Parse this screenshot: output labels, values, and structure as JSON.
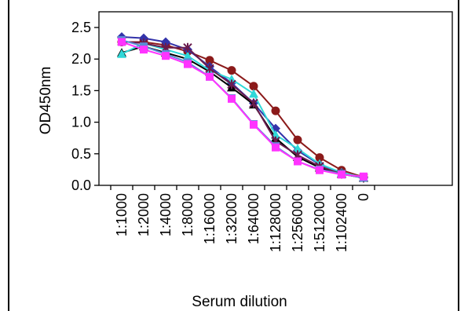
{
  "chart_data": {
    "type": "line",
    "title": "",
    "xlabel": "Serum dilution",
    "ylabel": "OD450nm",
    "ylim": [
      0,
      2.5
    ],
    "yticks": [
      "0.0",
      "0.5",
      "1.0",
      "1.5",
      "2.0",
      "2.5"
    ],
    "categories": [
      "1:1000",
      "1:2000",
      "1:4000",
      "1:8000",
      "1:16000",
      "1:32000",
      "1:64000",
      "1:128000",
      "1:256000",
      "1:512000",
      "1:102400",
      "0"
    ],
    "grid": false,
    "legend": "none",
    "series": [
      {
        "color": "#8B1A1A",
        "marker": "circle",
        "values": [
          2.27,
          2.27,
          2.22,
          2.12,
          1.98,
          1.82,
          1.57,
          1.18,
          0.72,
          0.44,
          0.24,
          0.13
        ]
      },
      {
        "color": "#3333AA",
        "marker": "diamond",
        "values": [
          2.35,
          2.33,
          2.27,
          2.15,
          1.88,
          1.62,
          1.3,
          0.9,
          0.55,
          0.33,
          0.2,
          0.12
        ]
      },
      {
        "color": "#000000",
        "marker": "triangle",
        "values": [
          2.1,
          2.2,
          2.1,
          2.0,
          1.8,
          1.55,
          1.28,
          0.75,
          0.45,
          0.28,
          0.18,
          0.12
        ]
      },
      {
        "color": "#30D8D8",
        "marker": "triangle",
        "values": [
          2.08,
          2.25,
          2.15,
          2.05,
          1.82,
          1.68,
          1.45,
          0.8,
          0.58,
          0.34,
          0.2,
          0.13
        ]
      },
      {
        "color": "#6A1B4D",
        "marker": "star",
        "values": [
          2.28,
          2.25,
          2.18,
          2.18,
          1.85,
          1.6,
          1.3,
          0.7,
          0.48,
          0.3,
          0.18,
          0.12
        ]
      },
      {
        "color": "#5B8DD6",
        "marker": "square",
        "values": [
          2.3,
          2.2,
          2.08,
          1.95,
          1.72,
          1.38,
          0.97,
          0.62,
          0.38,
          0.25,
          0.18,
          0.12
        ]
      },
      {
        "color": "#FF33FF",
        "marker": "square",
        "values": [
          2.27,
          2.15,
          2.05,
          1.92,
          1.72,
          1.37,
          0.96,
          0.6,
          0.38,
          0.24,
          0.17,
          0.14
        ]
      }
    ]
  }
}
